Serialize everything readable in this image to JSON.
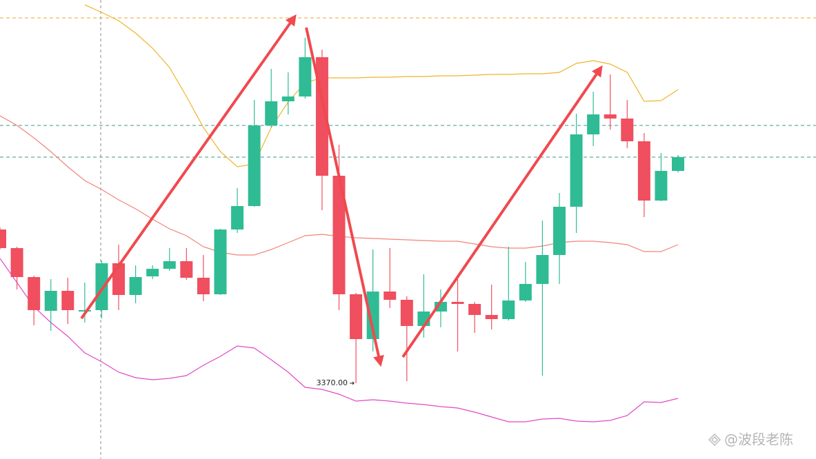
{
  "chart_data": {
    "type": "candlestick",
    "ylim": [
      3359,
      3425.6
    ],
    "up_color": "#2fbc94",
    "down_color": "#ef4f5e",
    "open": [
      3392.3,
      3389.6,
      3385.4,
      3380.5,
      3383.4,
      3380.4,
      3380.6,
      3387.4,
      3382.8,
      3385.5,
      3386.6,
      3387.7,
      3385.3,
      3382.9,
      3392.3,
      3395.7,
      3407.4,
      3410.9,
      3411.6,
      3417.3,
      3400.1,
      3382.9,
      3376.4,
      3383.3,
      3382.1,
      3378.3,
      3380.4,
      3381.8,
      3381.5,
      3379.9,
      3379.3,
      3382.0,
      3384.4,
      3388.6,
      3395.6,
      3406.1,
      3409.0,
      3408.4,
      3405.1,
      3396.5,
      3400.8
    ],
    "high": [
      3392.6,
      3389.8,
      3385.6,
      3385.1,
      3385.3,
      3384.6,
      3387.8,
      3390.1,
      3387.1,
      3387.1,
      3389.6,
      3389.6,
      3388.6,
      3392.4,
      3398.3,
      3411.1,
      3415.6,
      3415.1,
      3420.1,
      3418.4,
      3404.6,
      3383.1,
      3389.4,
      3389.6,
      3382.6,
      3385.8,
      3383.6,
      3385.1,
      3381.8,
      3384.3,
      3389.8,
      3387.6,
      3393.6,
      3397.6,
      3409.1,
      3412.3,
      3414.8,
      3411.1,
      3406.3,
      3403.4,
      3403.1
    ],
    "low": [
      3389.4,
      3383.6,
      3378.4,
      3377.6,
      3378.6,
      3378.8,
      3379.4,
      3380.6,
      3381.6,
      3385.1,
      3386.3,
      3385.0,
      3381.9,
      3382.8,
      3391.8,
      3395.6,
      3407.1,
      3409.0,
      3411.3,
      3395.1,
      3380.6,
      3370.0,
      3374.6,
      3380.9,
      3370.3,
      3376.6,
      3378.1,
      3374.6,
      3377.3,
      3377.8,
      3379.1,
      3381.8,
      3371.1,
      3384.4,
      3391.8,
      3404.4,
      3406.8,
      3404.1,
      3394.1,
      3396.4,
      3400.6
    ],
    "close": [
      3389.6,
      3385.4,
      3380.6,
      3383.4,
      3380.6,
      3380.6,
      3387.4,
      3382.8,
      3385.4,
      3386.6,
      3387.7,
      3385.3,
      3382.9,
      3392.3,
      3395.7,
      3407.4,
      3410.9,
      3411.6,
      3417.3,
      3400.1,
      3382.9,
      3376.4,
      3383.3,
      3382.1,
      3378.3,
      3380.4,
      3381.8,
      3381.5,
      3379.9,
      3379.3,
      3382.0,
      3384.4,
      3388.6,
      3395.6,
      3406.1,
      3409.0,
      3408.4,
      3405.1,
      3396.5,
      3400.8,
      3402.8
    ],
    "bands": [
      {
        "color": "#f0b429",
        "values": [
          null,
          null,
          null,
          null,
          null,
          3424.9,
          3423.8,
          3422.6,
          3420.8,
          3418.6,
          3415.8,
          3411.6,
          3407.1,
          3403.6,
          3401.4,
          3401.8,
          3407.1,
          3410.8,
          3413.6,
          3414.3,
          3414.3,
          3414.3,
          3414.4,
          3414.4,
          3414.5,
          3414.5,
          3414.6,
          3414.6,
          3414.7,
          3414.8,
          3414.8,
          3414.9,
          3414.9,
          3415.1,
          3416.4,
          3416.8,
          3416.3,
          3415.1,
          3410.9,
          3411.0,
          3412.6
        ]
      },
      {
        "color": "#f2837a",
        "values": [
          3408.8,
          3407.4,
          3405.6,
          3403.6,
          3401.4,
          3399.4,
          3398.1,
          3396.6,
          3395.3,
          3393.8,
          3392.4,
          3391.4,
          3389.8,
          3389.0,
          3388.6,
          3388.6,
          3389.4,
          3390.4,
          3391.4,
          3391.6,
          3391.3,
          3391.1,
          3391.0,
          3390.9,
          3390.8,
          3390.7,
          3390.6,
          3390.6,
          3390.2,
          3389.8,
          3389.6,
          3389.6,
          3389.9,
          3390.4,
          3390.6,
          3390.6,
          3390.4,
          3390.1,
          3389.1,
          3389.1,
          3390.1
        ]
      },
      {
        "color": "#e048c8",
        "values": [
          3388.1,
          3384.6,
          3381.1,
          3378.8,
          3376.8,
          3374.4,
          3373.1,
          3371.6,
          3370.8,
          3370.5,
          3370.7,
          3371.1,
          3372.6,
          3373.9,
          3375.4,
          3375.1,
          3373.4,
          3371.6,
          3369.4,
          3369.1,
          3368.4,
          3367.4,
          3367.6,
          3367.4,
          3367.1,
          3366.9,
          3366.6,
          3366.4,
          3365.8,
          3365.1,
          3364.4,
          3364.4,
          3364.8,
          3364.9,
          3364.5,
          3364.4,
          3364.6,
          3365.3,
          3367.3,
          3367.2,
          3367.8
        ]
      }
    ],
    "levels": [
      {
        "value": 3423.0,
        "color": "#f0a030"
      },
      {
        "value": 3407.4,
        "color": "#3a9a8a"
      },
      {
        "value": 3402.8,
        "color": "#3a9a8a"
      }
    ],
    "low_label": {
      "value": 3370,
      "label": "3370.00"
    },
    "low_label_index": 21,
    "watermark": "@波段老陈"
  }
}
